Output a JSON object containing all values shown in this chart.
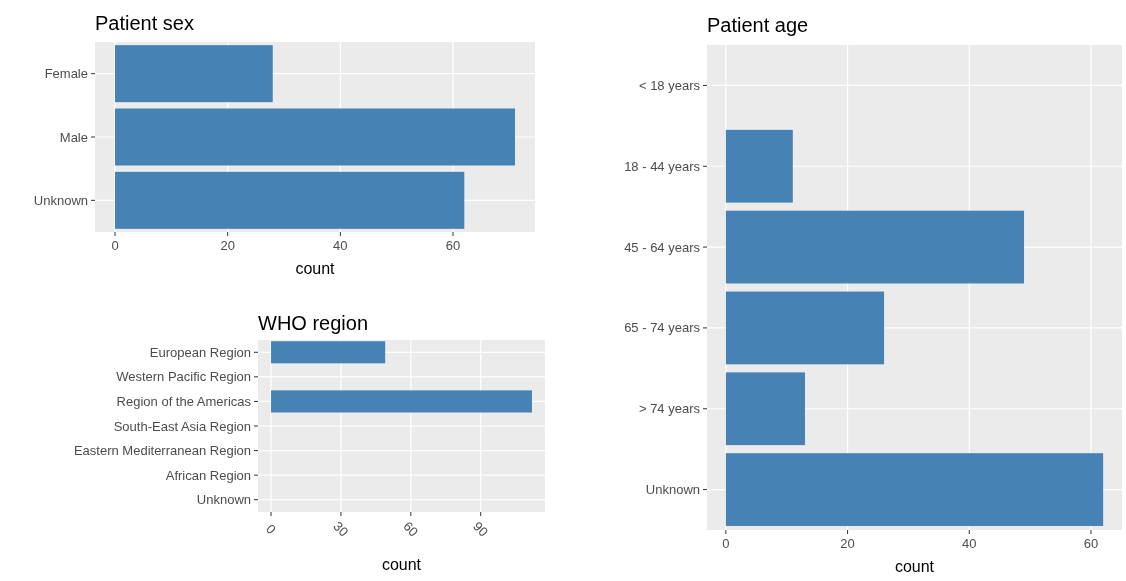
{
  "chart_data": [
    {
      "type": "bar",
      "orientation": "horizontal",
      "title": "Patient sex",
      "xlabel": "count",
      "categories": [
        "Female",
        "Male",
        "Unknown"
      ],
      "values": [
        28,
        71,
        62
      ],
      "color": "#4682b4",
      "xlim": [
        -3.55,
        74.55
      ],
      "xticks": [
        0,
        20,
        40,
        60
      ],
      "grid": true
    },
    {
      "type": "bar",
      "orientation": "horizontal",
      "title": "WHO region",
      "xlabel": "count",
      "categories": [
        "European Region",
        "Western Pacific Region",
        "Region of the Americas",
        "South-East Asia Region",
        "Eastern Mediterranean Region",
        "African Region",
        "Unknown"
      ],
      "values": [
        49,
        0,
        112,
        0,
        0,
        0,
        0
      ],
      "color": "#4682b4",
      "xlim": [
        -5.6,
        117.6
      ],
      "xticks": [
        0,
        30,
        60,
        90
      ],
      "grid": true
    },
    {
      "type": "bar",
      "orientation": "horizontal",
      "title": "Patient age",
      "xlabel": "count",
      "categories": [
        "< 18 years",
        "18 - 44 years",
        "45 - 64 years",
        "65 - 74 years",
        "> 74 years",
        "Unknown"
      ],
      "values": [
        0,
        11,
        49,
        26,
        13,
        62
      ],
      "color": "#4682b4",
      "xlim": [
        -3.1,
        65.1
      ],
      "xticks": [
        0,
        20,
        40,
        60
      ],
      "grid": true
    }
  ]
}
